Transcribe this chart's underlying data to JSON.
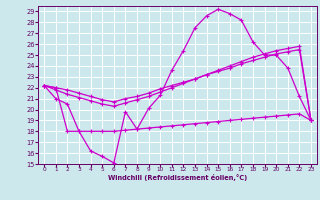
{
  "xlabel": "Windchill (Refroidissement éolien,°C)",
  "bg_color": "#cce8ec",
  "grid_color": "#ffffff",
  "line_color": "#cc00cc",
  "xlim": [
    -0.5,
    23.5
  ],
  "ylim": [
    15,
    29.5
  ],
  "xticks": [
    0,
    1,
    2,
    3,
    4,
    5,
    6,
    7,
    8,
    9,
    10,
    11,
    12,
    13,
    14,
    15,
    16,
    17,
    18,
    19,
    20,
    21,
    22,
    23
  ],
  "yticks": [
    15,
    16,
    17,
    18,
    19,
    20,
    21,
    22,
    23,
    24,
    25,
    26,
    27,
    28,
    29
  ],
  "curve1_x": [
    0,
    1,
    2,
    3,
    4,
    5,
    6,
    7,
    8,
    9,
    10,
    11,
    12,
    13,
    14,
    15,
    16,
    17,
    18,
    19,
    20,
    21,
    22,
    23
  ],
  "curve1_y": [
    22.2,
    21.0,
    20.5,
    18.0,
    16.2,
    15.7,
    15.1,
    19.8,
    18.2,
    20.1,
    21.3,
    23.6,
    25.4,
    27.5,
    28.6,
    29.2,
    28.8,
    28.2,
    26.2,
    25.0,
    25.0,
    23.8,
    21.2,
    19.0
  ],
  "curve2_x": [
    0,
    1,
    2,
    3,
    4,
    5,
    6,
    7,
    8,
    9,
    10,
    11,
    12,
    13,
    14,
    15,
    16,
    17,
    18,
    19,
    20,
    21,
    22,
    23
  ],
  "curve2_y": [
    22.2,
    21.8,
    21.4,
    21.1,
    20.8,
    20.5,
    20.3,
    20.6,
    20.9,
    21.2,
    21.6,
    22.0,
    22.4,
    22.8,
    23.2,
    23.6,
    24.0,
    24.4,
    24.8,
    25.1,
    25.4,
    25.6,
    25.8,
    19.0
  ],
  "curve3_x": [
    0,
    1,
    2,
    3,
    4,
    5,
    6,
    7,
    8,
    9,
    10,
    11,
    12,
    13,
    14,
    15,
    16,
    17,
    18,
    19,
    20,
    21,
    22,
    23
  ],
  "curve3_y": [
    22.2,
    22.0,
    21.8,
    21.5,
    21.2,
    20.9,
    20.7,
    21.0,
    21.2,
    21.5,
    21.9,
    22.2,
    22.5,
    22.8,
    23.2,
    23.5,
    23.8,
    24.2,
    24.5,
    24.8,
    25.1,
    25.3,
    25.5,
    19.0
  ],
  "curve4_x": [
    0,
    1,
    2,
    3,
    4,
    5,
    6,
    7,
    8,
    9,
    10,
    11,
    12,
    13,
    14,
    15,
    16,
    17,
    18,
    19,
    20,
    21,
    22,
    23
  ],
  "curve4_y": [
    22.2,
    22.0,
    18.0,
    18.0,
    18.0,
    18.0,
    18.0,
    18.1,
    18.2,
    18.3,
    18.4,
    18.5,
    18.6,
    18.7,
    18.8,
    18.9,
    19.0,
    19.1,
    19.2,
    19.3,
    19.4,
    19.5,
    19.6,
    19.0
  ]
}
